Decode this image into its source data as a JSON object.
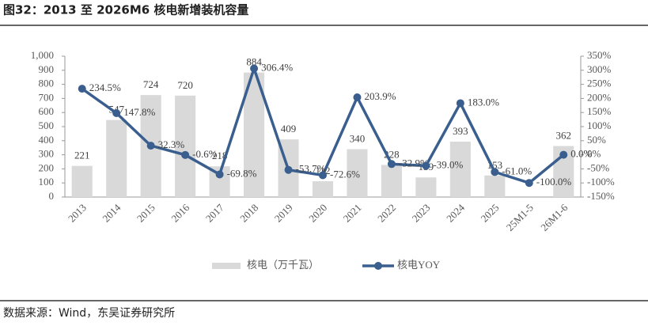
{
  "chart_data": {
    "type": "combo",
    "title": "图32：2013 至 2026M6 核电新增装机容量",
    "source": "数据来源：Wind，东吴证券研究所",
    "categories": [
      "2013",
      "2014",
      "2015",
      "2016",
      "2017",
      "2018",
      "2019",
      "2020",
      "2021",
      "2022",
      "2023",
      "2024",
      "2025",
      "25M1-5",
      "26M1-6"
    ],
    "series": [
      {
        "name": "核电（万千瓦）",
        "type": "bar",
        "color": "#d9d9d9",
        "values": [
          221,
          547,
          724,
          720,
          218,
          884,
          409,
          112,
          340,
          228,
          139,
          393,
          153,
          null,
          362
        ]
      },
      {
        "name": "核电YOY",
        "type": "line",
        "axis": "y2",
        "color": "#3a5f8f",
        "values": [
          234.5,
          147.8,
          32.3,
          -0.6,
          -69.8,
          306.4,
          -53.7,
          -72.6,
          203.9,
          -32.9,
          -39.0,
          183.0,
          -61.0,
          -100.0,
          0.0
        ],
        "value_labels": [
          "234.5%",
          "147.8%",
          "32.3%",
          "-0.6%",
          "-69.8%",
          "306.4%",
          "-53.7%",
          "-72.6%",
          "203.9%",
          "-32.9%",
          "-39.0%",
          "183.0%",
          "-61.0%",
          "-100.0%",
          "0.0%"
        ]
      }
    ],
    "ylim": [
      0,
      1000
    ],
    "yticks": [
      0,
      100,
      200,
      300,
      400,
      500,
      600,
      700,
      800,
      900,
      {
        "value": 1000,
        "label": "1,000"
      }
    ],
    "y2lim": [
      -150,
      350
    ],
    "y2ticks": [
      {
        "value": -150,
        "label": "-150%"
      },
      {
        "value": -100,
        "label": "-100%"
      },
      {
        "value": -50,
        "label": "-50%"
      },
      {
        "value": 0,
        "label": "0%"
      },
      {
        "value": 50,
        "label": "50%"
      },
      {
        "value": 100,
        "label": "100%"
      },
      {
        "value": 150,
        "label": "150%"
      },
      {
        "value": 200,
        "label": "200%"
      },
      {
        "value": 250,
        "label": "250%"
      },
      {
        "value": 300,
        "label": "300%"
      },
      {
        "value": 350,
        "label": "350%"
      }
    ],
    "legend": "bottom"
  }
}
